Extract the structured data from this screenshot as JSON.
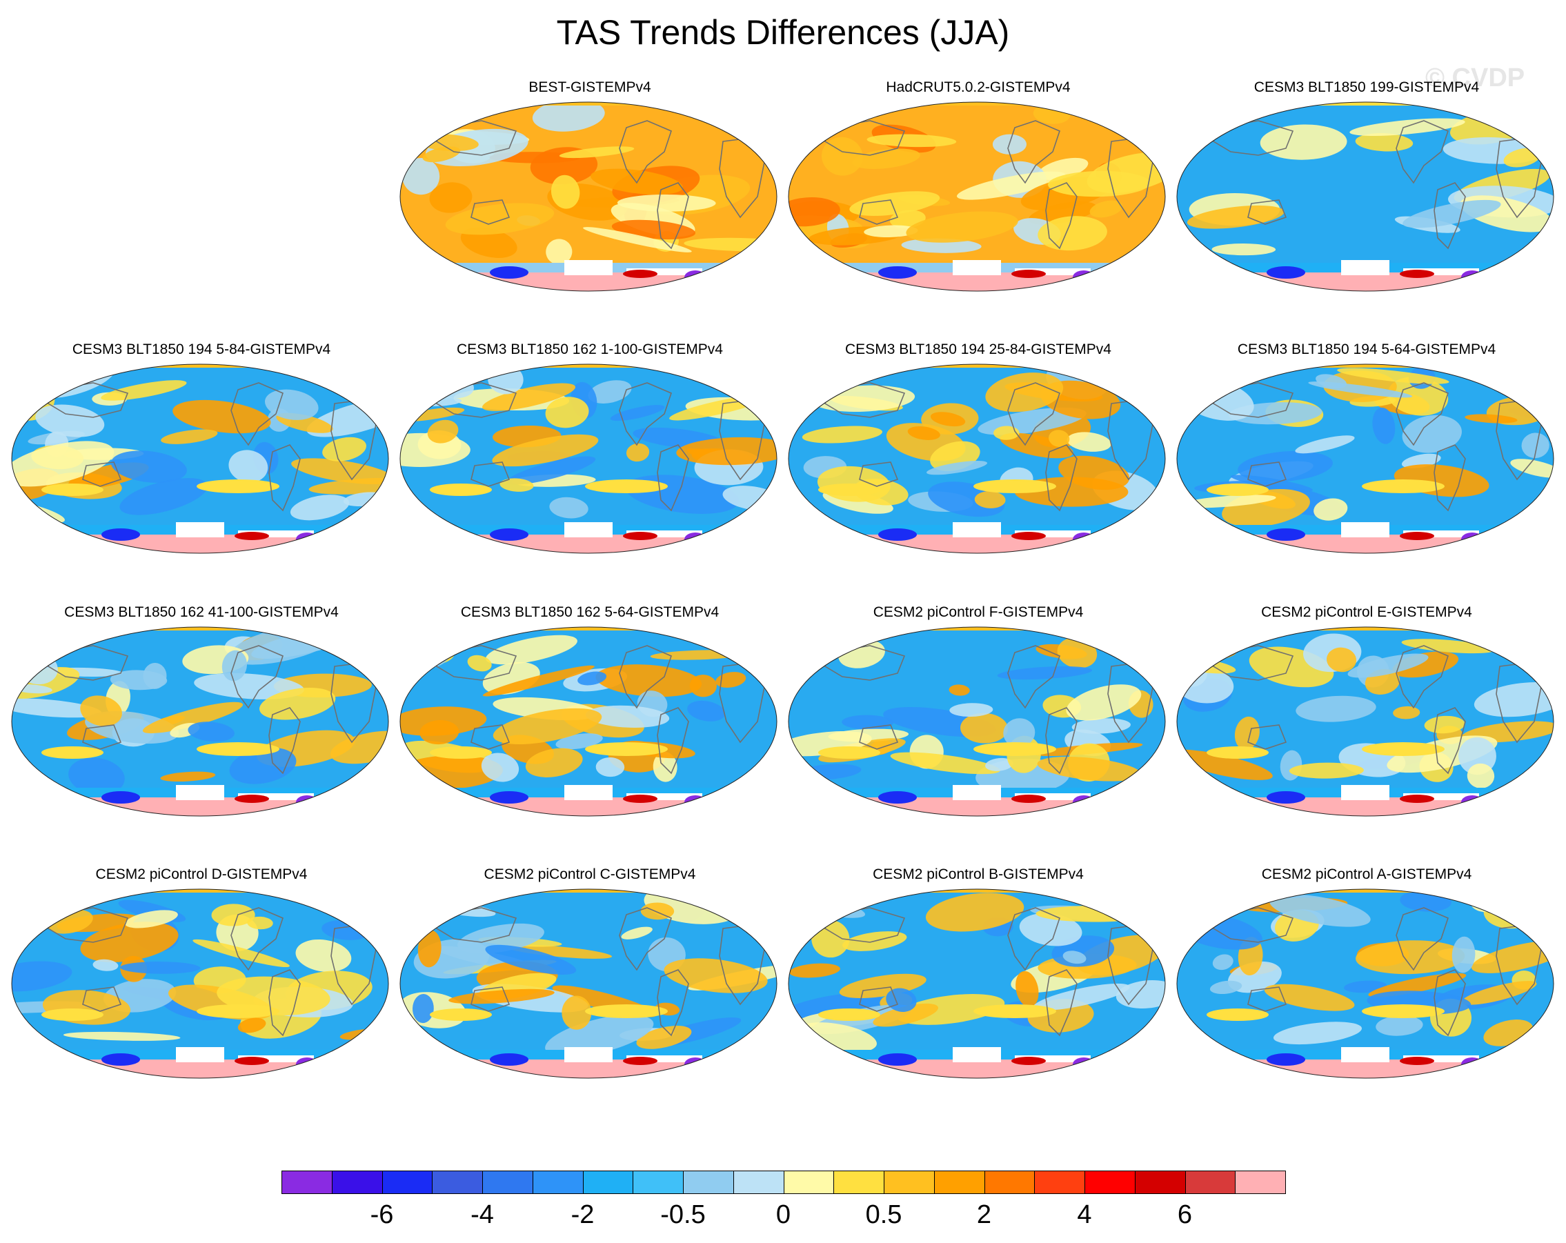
{
  "title": "TAS Trends Differences (JJA)",
  "watermark": "© CVDP",
  "panels": [
    {
      "title": "BEST-GISTEMPv4",
      "pattern": "warm"
    },
    {
      "title": "HadCRUT5.0.2-GISTEMPv4",
      "pattern": "warm"
    },
    {
      "title": "CESM3 BLT1850 199-GISTEMPv4",
      "pattern": "cool"
    },
    {
      "title": "CESM3 BLT1850 194 5-84-GISTEMPv4",
      "pattern": "mixed"
    },
    {
      "title": "CESM3 BLT1850 162 1-100-GISTEMPv4",
      "pattern": "mixed"
    },
    {
      "title": "CESM3 BLT1850 194 25-84-GISTEMPv4",
      "pattern": "mixed"
    },
    {
      "title": "CESM3 BLT1850 194 5-64-GISTEMPv4",
      "pattern": "mixed"
    },
    {
      "title": "CESM3 BLT1850 162 41-100-GISTEMPv4",
      "pattern": "mixed"
    },
    {
      "title": "CESM3 BLT1850 162 5-64-GISTEMPv4",
      "pattern": "mixed"
    },
    {
      "title": "CESM2 piControl F-GISTEMPv4",
      "pattern": "mixed"
    },
    {
      "title": "CESM2 piControl E-GISTEMPv4",
      "pattern": "mixed"
    },
    {
      "title": "CESM2 piControl D-GISTEMPv4",
      "pattern": "mixed"
    },
    {
      "title": "CESM2 piControl C-GISTEMPv4",
      "pattern": "mixed"
    },
    {
      "title": "CESM2 piControl B-GISTEMPv4",
      "pattern": "mixed"
    },
    {
      "title": "CESM2 piControl A-GISTEMPv4",
      "pattern": "mixed"
    }
  ],
  "colorbar": {
    "colors": [
      "#8a2be2",
      "#3a10e8",
      "#1a2cf5",
      "#3b5ce0",
      "#2f78f0",
      "#2e93f8",
      "#1fb0f5",
      "#40c0f8",
      "#90ccf0",
      "#bde2f6",
      "#fffaa8",
      "#ffe040",
      "#ffc020",
      "#ffa000",
      "#ff7800",
      "#ff4010",
      "#ff0000",
      "#d40000",
      "#d83a3a",
      "#ffb0b4"
    ],
    "labels": [
      "-6",
      "-4",
      "-2",
      "-0.5",
      "0",
      "0.5",
      "2",
      "4",
      "6"
    ]
  },
  "palette": {
    "land_outline": "#707070",
    "ocean_cool": "#29aaf0",
    "warm": "#ffb020",
    "ice": "#ffffff",
    "antarctic": "#ffb0b4"
  }
}
